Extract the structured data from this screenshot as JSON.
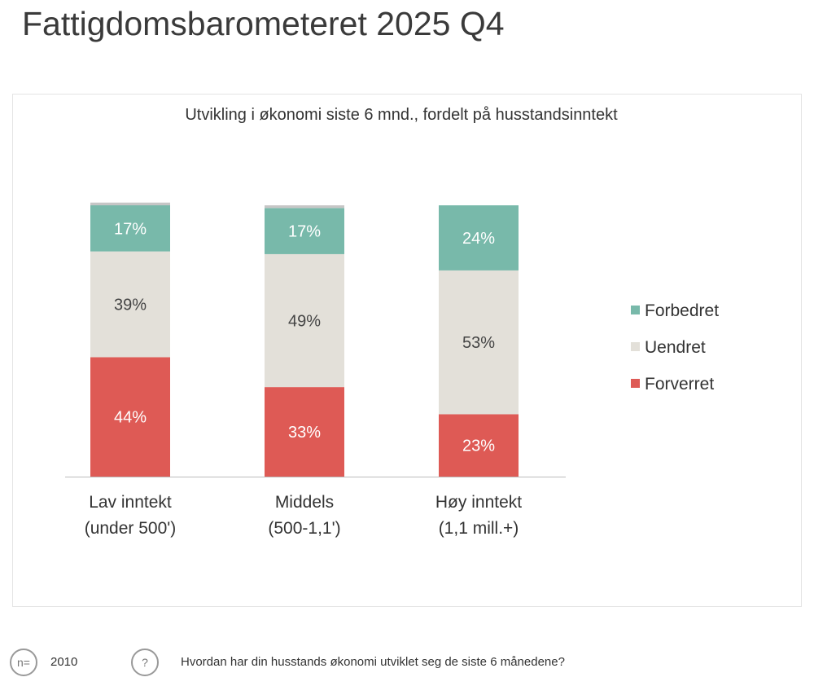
{
  "page_title": "Fattigdomsbarometeret 2025 Q4",
  "chart_data": {
    "type": "bar",
    "stacked": true,
    "title": "Utvikling i økonomi siste 6 mnd., fordelt på husstandsinntekt",
    "categories": [
      [
        "Lav inntekt",
        "(under 500')"
      ],
      [
        "Middels",
        "(500-1,1')"
      ],
      [
        "Høy inntekt",
        "(1,1 mill.+)"
      ]
    ],
    "series": [
      {
        "name": "Forverret",
        "color": "#de5a55",
        "values": [
          44,
          33,
          23
        ]
      },
      {
        "name": "Uendret",
        "color": "#e3e0d9",
        "values": [
          39,
          49,
          53
        ]
      },
      {
        "name": "Forbedret",
        "color": "#78b9aa",
        "values": [
          17,
          17,
          24
        ]
      },
      {
        "color": "#c6c6c6",
        "values": [
          1,
          1,
          0
        ]
      }
    ],
    "ylim": [
      0,
      100
    ],
    "legend": "right",
    "grid": false
  },
  "footer": {
    "n_label": "n=",
    "n_value": "2010",
    "question_icon": "?",
    "question": "Hvordan har din husstands økonomi utviklet seg de siste 6 månedene?"
  }
}
